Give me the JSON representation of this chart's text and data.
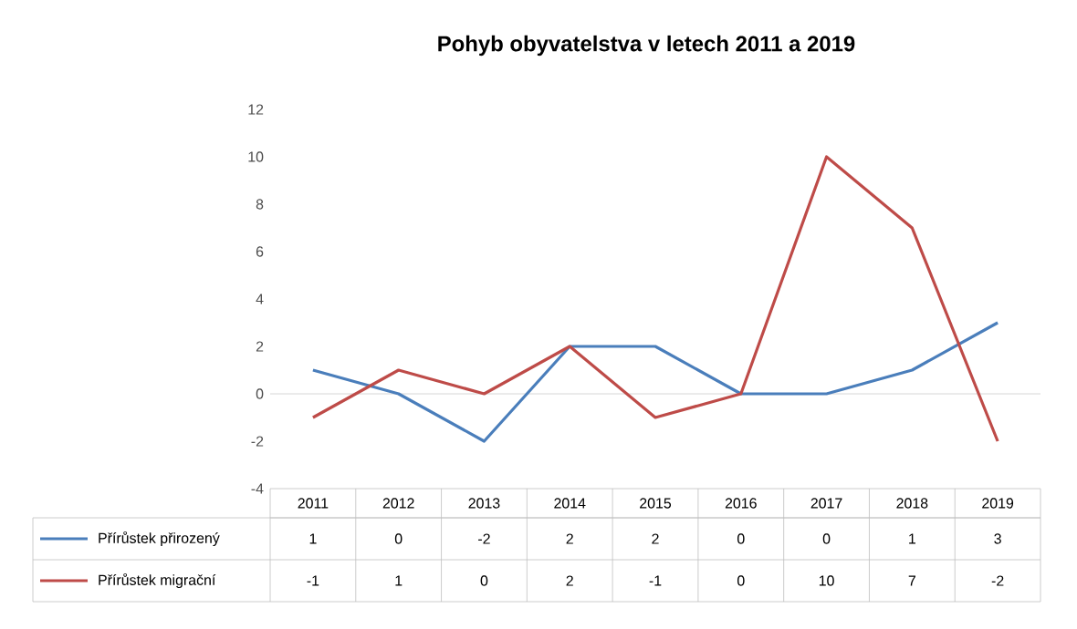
{
  "chart_data": {
    "type": "line",
    "title": "Pohyb obyvatelstva v letech 2011 a 2019",
    "categories": [
      "2011",
      "2012",
      "2013",
      "2014",
      "2015",
      "2016",
      "2017",
      "2018",
      "2019"
    ],
    "series": [
      {
        "name": "Přírůstek přirozený",
        "color": "#4a7ebb",
        "values": [
          1,
          0,
          -2,
          2,
          2,
          0,
          0,
          1,
          3
        ]
      },
      {
        "name": "Přírůstek migrační",
        "color": "#be4b48",
        "values": [
          -1,
          1,
          0,
          2,
          -1,
          0,
          10,
          7,
          -2
        ]
      }
    ],
    "ylim": [
      -4,
      12
    ],
    "yticks": [
      -4,
      -2,
      0,
      2,
      4,
      6,
      8,
      10,
      12
    ],
    "data_labels": true,
    "legend": "bottom",
    "marker": "none",
    "line_style": "solid"
  }
}
